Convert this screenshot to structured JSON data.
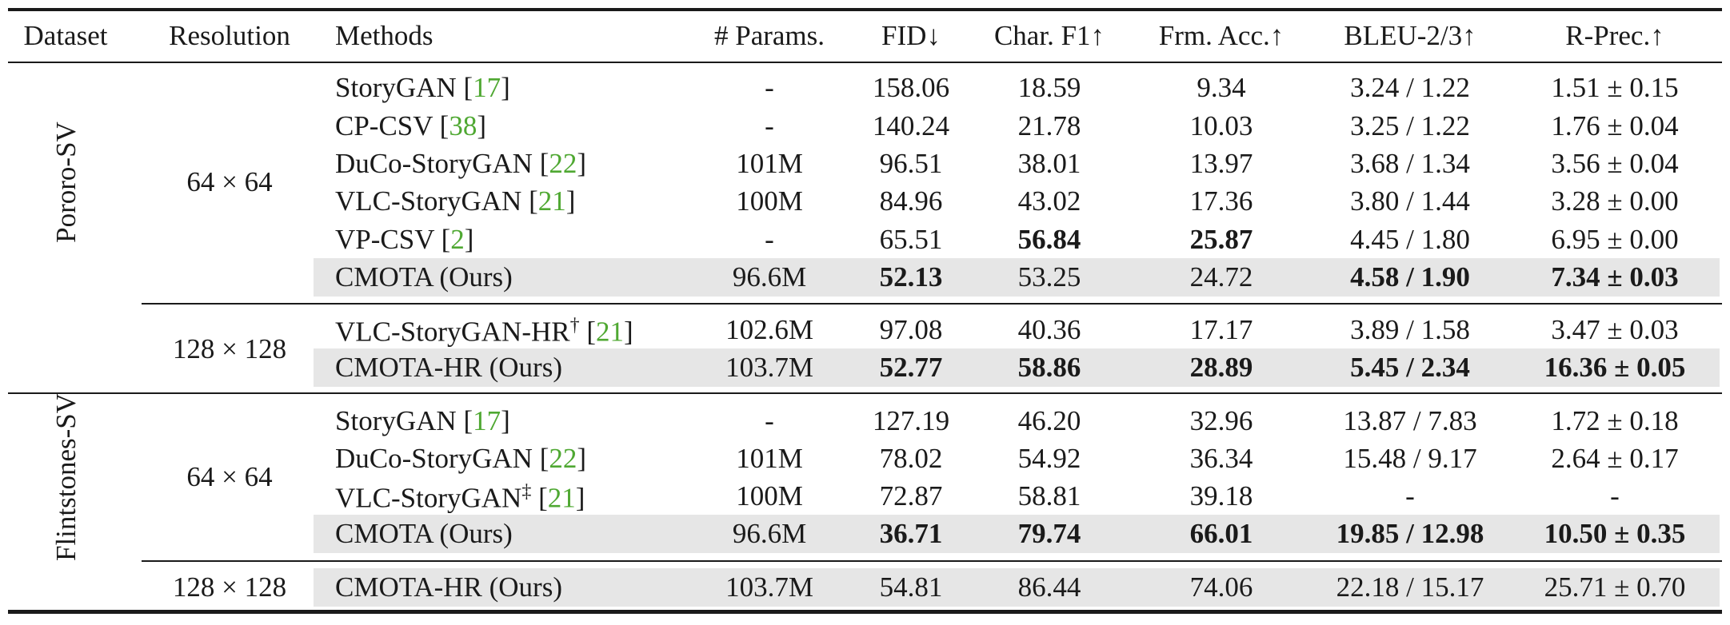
{
  "columns": [
    "Dataset",
    "Resolution",
    "Methods",
    "# Params.",
    "FID↓",
    "Char. F1↑",
    "Frm. Acc.↑",
    "BLEU-2/3↑",
    "R-Prec.↑"
  ],
  "datasets": [
    "Pororo-SV",
    "Flintstones-SV"
  ],
  "resolutions": [
    "64 × 64",
    "128 × 128",
    "64 × 64",
    "128 × 128"
  ],
  "rows": [
    {
      "method": "StoryGAN",
      "mark": "",
      "cite": "17",
      "params": "-",
      "fid": "158.06",
      "f1": "18.59",
      "acc": "9.34",
      "bleu": "3.24 / 1.22",
      "rprec": "1.51 ± 0.15",
      "ours": false,
      "bold": []
    },
    {
      "method": "CP-CSV",
      "mark": "",
      "cite": "38",
      "params": "-",
      "fid": "140.24",
      "f1": "21.78",
      "acc": "10.03",
      "bleu": "3.25 / 1.22",
      "rprec": "1.76 ± 0.04",
      "ours": false,
      "bold": []
    },
    {
      "method": "DuCo-StoryGAN",
      "mark": "",
      "cite": "22",
      "params": "101M",
      "fid": "96.51",
      "f1": "38.01",
      "acc": "13.97",
      "bleu": "3.68 / 1.34",
      "rprec": "3.56 ± 0.04",
      "ours": false,
      "bold": []
    },
    {
      "method": "VLC-StoryGAN",
      "mark": "",
      "cite": "21",
      "params": "100M",
      "fid": "84.96",
      "f1": "43.02",
      "acc": "17.36",
      "bleu": "3.80 / 1.44",
      "rprec": "3.28 ± 0.00",
      "ours": false,
      "bold": []
    },
    {
      "method": "VP-CSV",
      "mark": "",
      "cite": "2",
      "params": "-",
      "fid": "65.51",
      "f1": "56.84",
      "acc": "25.87",
      "bleu": "4.45 / 1.80",
      "rprec": "6.95 ± 0.00",
      "ours": false,
      "bold": [
        "f1",
        "acc"
      ]
    },
    {
      "method": "CMOTA (Ours)",
      "mark": "",
      "cite": "",
      "params": "96.6M",
      "fid": "52.13",
      "f1": "53.25",
      "acc": "24.72",
      "bleu": "4.58 / 1.90",
      "rprec": "7.34 ± 0.03",
      "ours": true,
      "bold": [
        "fid",
        "bleu",
        "rprec"
      ]
    },
    {
      "method": "VLC-StoryGAN-HR",
      "mark": "†",
      "cite": "21",
      "params": "102.6M",
      "fid": "97.08",
      "f1": "40.36",
      "acc": "17.17",
      "bleu": "3.89 / 1.58",
      "rprec": "3.47 ± 0.03",
      "ours": false,
      "bold": []
    },
    {
      "method": "CMOTA-HR (Ours)",
      "mark": "",
      "cite": "",
      "params": "103.7M",
      "fid": "52.77",
      "f1": "58.86",
      "acc": "28.89",
      "bleu": "5.45 / 2.34",
      "rprec": "16.36 ± 0.05",
      "ours": true,
      "bold": [
        "fid",
        "f1",
        "acc",
        "bleu",
        "rprec"
      ]
    },
    {
      "method": "StoryGAN",
      "mark": "",
      "cite": "17",
      "params": "-",
      "fid": "127.19",
      "f1": "46.20",
      "acc": "32.96",
      "bleu": "13.87 / 7.83",
      "rprec": "1.72 ± 0.18",
      "ours": false,
      "bold": []
    },
    {
      "method": "DuCo-StoryGAN",
      "mark": "",
      "cite": "22",
      "params": "101M",
      "fid": "78.02",
      "f1": "54.92",
      "acc": "36.34",
      "bleu": "15.48 / 9.17",
      "rprec": "2.64 ± 0.17",
      "ours": false,
      "bold": []
    },
    {
      "method": "VLC-StoryGAN",
      "mark": "‡",
      "cite": "21",
      "params": "100M",
      "fid": "72.87",
      "f1": "58.81",
      "acc": "39.18",
      "bleu": "-",
      "rprec": "-",
      "ours": false,
      "bold": []
    },
    {
      "method": "CMOTA (Ours)",
      "mark": "",
      "cite": "",
      "params": "96.6M",
      "fid": "36.71",
      "f1": "79.74",
      "acc": "66.01",
      "bleu": "19.85 / 12.98",
      "rprec": "10.50 ± 0.35",
      "ours": true,
      "bold": [
        "fid",
        "f1",
        "acc",
        "bleu",
        "rprec"
      ]
    },
    {
      "method": "CMOTA-HR (Ours)",
      "mark": "",
      "cite": "",
      "params": "103.7M",
      "fid": "54.81",
      "f1": "86.44",
      "acc": "74.06",
      "bleu": "22.18 / 15.17",
      "rprec": "25.71 ± 0.70",
      "ours": true,
      "bold": []
    }
  ],
  "colors": {
    "citation": "#4fa832",
    "highlight": "#e6e6e6",
    "rule": "#1a1a1a"
  }
}
